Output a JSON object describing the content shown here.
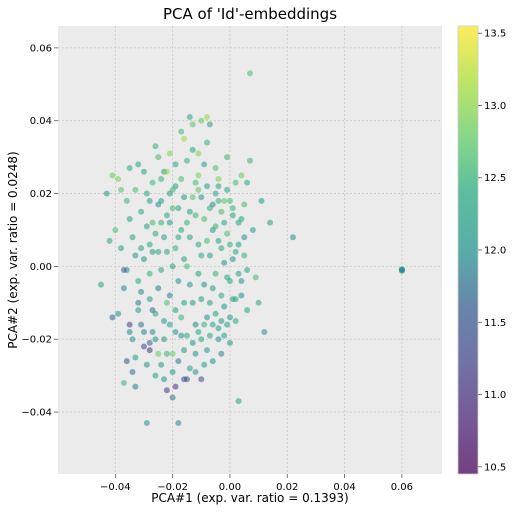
{
  "chart_data": {
    "type": "scatter",
    "title": "PCA of 'Id'-embeddings",
    "xlabel": "PCA#1 (exp. var. ratio = 0.1393)",
    "ylabel": "PCA#2 (exp. var. ratio = 0.0248)",
    "xlim": [
      -0.06,
      0.074
    ],
    "ylim": [
      -0.057,
      0.066
    ],
    "xticks": [
      -0.04,
      -0.02,
      0.0,
      0.02,
      0.04,
      0.06
    ],
    "xtick_labels": [
      "−0.04",
      "−0.02",
      "0.00",
      "0.02",
      "0.04",
      "0.06"
    ],
    "yticks": [
      -0.04,
      -0.02,
      0.0,
      0.02,
      0.04,
      0.06
    ],
    "ytick_labels": [
      "−0.04",
      "−0.02",
      "0.00",
      "0.02",
      "0.04",
      "0.06"
    ],
    "grid": true,
    "colorbar": {
      "colormap": "viridis",
      "range": [
        10.45,
        13.55
      ],
      "ticks": [
        10.5,
        11.0,
        11.5,
        12.0,
        12.5,
        13.0,
        13.5
      ],
      "tick_labels": [
        "10.5",
        "11.0",
        "11.5",
        "12.0",
        "12.5",
        "13.0",
        "13.5"
      ]
    },
    "colors": {
      "plot_background": "#ebebeb",
      "grid": "#c8c8c8",
      "point_alpha": 0.55
    },
    "points": [
      [
        -0.045,
        -0.005,
        12.3
      ],
      [
        -0.043,
        0.02,
        12.1
      ],
      [
        -0.042,
        0.007,
        12.4
      ],
      [
        -0.041,
        -0.014,
        11.6
      ],
      [
        -0.04,
        0.01,
        12.6
      ],
      [
        -0.039,
        0.024,
        12.9
      ],
      [
        -0.038,
        0.021,
        12.7
      ],
      [
        -0.037,
        -0.032,
        12.5
      ],
      [
        -0.036,
        -0.026,
        11.4
      ],
      [
        -0.035,
        0.013,
        12.2
      ],
      [
        -0.034,
        -0.02,
        12.0
      ],
      [
        -0.033,
        -0.033,
        11.8
      ],
      [
        -0.032,
        0.028,
        12.3
      ],
      [
        -0.031,
        -0.007,
        11.9
      ],
      [
        -0.03,
        0.002,
        12.1
      ],
      [
        -0.03,
        -0.022,
        11.2
      ],
      [
        -0.029,
        -0.043,
        12.0
      ],
      [
        -0.028,
        0.006,
        12.4
      ],
      [
        -0.027,
        -0.012,
        11.7
      ],
      [
        -0.026,
        0.033,
        12.5
      ],
      [
        -0.025,
        -0.024,
        12.8
      ],
      [
        -0.024,
        0.018,
        12.2
      ],
      [
        -0.023,
        -0.031,
        12.0
      ],
      [
        -0.022,
        -0.034,
        11.1
      ],
      [
        -0.021,
        0.031,
        12.9
      ],
      [
        -0.02,
        -0.036,
        11.8
      ],
      [
        -0.019,
        0.022,
        12.3
      ],
      [
        -0.018,
        -0.043,
        11.9
      ],
      [
        -0.017,
        0.037,
        12.6
      ],
      [
        -0.016,
        0.035,
        13.1
      ],
      [
        -0.015,
        -0.031,
        11.5
      ],
      [
        -0.014,
        0.041,
        12.4
      ],
      [
        -0.013,
        0.039,
        12.7
      ],
      [
        -0.012,
        -0.029,
        12.1
      ],
      [
        -0.011,
        0.025,
        12.9
      ],
      [
        -0.01,
        0.04,
        12.8
      ],
      [
        -0.009,
        -0.027,
        12.2
      ],
      [
        -0.008,
        0.034,
        12.5
      ],
      [
        -0.007,
        0.039,
        12.3
      ],
      [
        -0.006,
        -0.026,
        12.0
      ],
      [
        -0.005,
        0.027,
        12.6
      ],
      [
        -0.004,
        0.022,
        12.4
      ],
      [
        -0.003,
        -0.024,
        11.9
      ],
      [
        -0.002,
        0.018,
        12.7
      ],
      [
        -0.001,
        0.03,
        12.5
      ],
      [
        0.0,
        -0.021,
        12.1
      ],
      [
        0.001,
        0.014,
        12.3
      ],
      [
        0.002,
        0.023,
        12.6
      ],
      [
        0.003,
        -0.037,
        12.2
      ],
      [
        0.004,
        0.025,
        12.8
      ],
      [
        0.005,
        0.008,
        12.0
      ],
      [
        0.006,
        0.023,
        12.4
      ],
      [
        0.007,
        0.029,
        12.5
      ],
      [
        0.008,
        0.01,
        12.2
      ],
      [
        0.009,
        -0.003,
        12.6
      ],
      [
        0.01,
        -0.01,
        12.4
      ],
      [
        0.011,
        0.018,
        12.1
      ],
      [
        0.012,
        -0.018,
        12.0
      ],
      [
        0.014,
        0.012,
        12.3
      ],
      [
        0.022,
        0.008,
        12.0
      ],
      [
        0.007,
        0.053,
        12.6
      ],
      [
        -0.028,
        0.018,
        12.2
      ],
      [
        -0.027,
        -0.018,
        12.0
      ],
      [
        -0.026,
        0.009,
        12.4
      ],
      [
        -0.025,
        -0.006,
        11.8
      ],
      [
        -0.024,
        0.012,
        12.5
      ],
      [
        -0.023,
        -0.015,
        12.1
      ],
      [
        -0.022,
        0.004,
        12.3
      ],
      [
        -0.021,
        -0.008,
        11.9
      ],
      [
        -0.02,
        0.016,
        12.6
      ],
      [
        -0.019,
        -0.012,
        12.2
      ],
      [
        -0.018,
        0.008,
        12.4
      ],
      [
        -0.017,
        -0.019,
        12.0
      ],
      [
        -0.016,
        0.002,
        12.3
      ],
      [
        -0.015,
        0.012,
        12.5
      ],
      [
        -0.014,
        -0.005,
        12.1
      ],
      [
        -0.013,
        0.019,
        12.7
      ],
      [
        -0.012,
        -0.016,
        11.9
      ],
      [
        -0.011,
        0.006,
        12.4
      ],
      [
        -0.01,
        -0.009,
        12.2
      ],
      [
        -0.009,
        0.013,
        12.6
      ],
      [
        -0.008,
        -0.014,
        12.0
      ],
      [
        -0.007,
        0.003,
        12.3
      ],
      [
        -0.006,
        -0.006,
        12.1
      ],
      [
        -0.005,
        0.011,
        12.5
      ],
      [
        -0.004,
        -0.017,
        12.2
      ],
      [
        -0.003,
        0.005,
        12.4
      ],
      [
        -0.002,
        -0.011,
        12.0
      ],
      [
        -0.001,
        0.009,
        12.6
      ],
      [
        0.0,
        -0.004,
        12.3
      ],
      [
        0.001,
        0.002,
        12.1
      ],
      [
        0.002,
        -0.015,
        12.4
      ],
      [
        0.003,
        0.006,
        12.2
      ],
      [
        0.004,
        -0.008,
        12.0
      ],
      [
        0.005,
        0.003,
        12.5
      ],
      [
        0.006,
        -0.012,
        12.3
      ],
      [
        -0.033,
        0.003,
        12.1
      ],
      [
        -0.032,
        -0.01,
        11.8
      ],
      [
        -0.031,
        0.015,
        12.4
      ],
      [
        -0.03,
        0.026,
        12.3
      ],
      [
        -0.029,
        -0.027,
        12.0
      ],
      [
        -0.028,
        -0.021,
        11.6
      ],
      [
        -0.027,
        0.023,
        12.5
      ],
      [
        -0.026,
        -0.03,
        12.2
      ],
      [
        -0.025,
        0.03,
        12.6
      ],
      [
        -0.024,
        -0.027,
        12.1
      ],
      [
        -0.023,
        0.026,
        12.3
      ],
      [
        -0.022,
        -0.024,
        12.5
      ],
      [
        -0.021,
        0.02,
        12.2
      ],
      [
        -0.02,
        -0.029,
        12.0
      ],
      [
        -0.019,
        0.028,
        12.4
      ],
      [
        -0.018,
        -0.026,
        11.8
      ],
      [
        -0.017,
        0.024,
        12.6
      ],
      [
        -0.016,
        -0.023,
        12.1
      ],
      [
        -0.015,
        0.029,
        12.5
      ],
      [
        -0.014,
        -0.028,
        12.2
      ],
      [
        -0.013,
        0.032,
        12.3
      ],
      [
        -0.012,
        -0.024,
        12.0
      ],
      [
        -0.011,
        0.021,
        12.7
      ],
      [
        -0.01,
        -0.02,
        12.4
      ],
      [
        -0.009,
        0.028,
        12.2
      ],
      [
        -0.008,
        -0.023,
        12.1
      ],
      [
        -0.007,
        0.016,
        12.5
      ],
      [
        -0.006,
        -0.016,
        12.3
      ],
      [
        -0.005,
        0.02,
        12.4
      ],
      [
        -0.004,
        -0.02,
        12.0
      ],
      [
        -0.003,
        0.015,
        12.6
      ],
      [
        -0.002,
        -0.019,
        12.2
      ],
      [
        -0.001,
        0.021,
        12.3
      ],
      [
        0.0,
        -0.014,
        12.1
      ],
      [
        0.001,
        0.016,
        12.5
      ],
      [
        0.002,
        -0.009,
        12.4
      ],
      [
        0.003,
        0.012,
        12.2
      ],
      [
        0.004,
        -0.004,
        12.0
      ],
      [
        0.005,
        0.017,
        12.6
      ],
      [
        0.006,
        -0.001,
        12.3
      ],
      [
        -0.036,
        -0.001,
        12.0
      ],
      [
        -0.035,
        -0.018,
        11.9
      ],
      [
        -0.034,
        0.008,
        12.3
      ],
      [
        -0.033,
        -0.025,
        12.1
      ],
      [
        -0.032,
        -0.004,
        12.4
      ],
      [
        -0.031,
        -0.016,
        11.7
      ],
      [
        -0.029,
        0.011,
        12.2
      ],
      [
        -0.028,
        -0.002,
        12.5
      ],
      [
        -0.027,
        0.004,
        12.1
      ],
      [
        -0.026,
        -0.013,
        12.3
      ],
      [
        -0.025,
        0.017,
        12.0
      ],
      [
        -0.024,
        -0.001,
        12.4
      ],
      [
        -0.023,
        0.008,
        12.2
      ],
      [
        -0.022,
        -0.01,
        12.6
      ],
      [
        -0.021,
        0.012,
        12.1
      ],
      [
        -0.02,
        0.0,
        12.3
      ],
      [
        -0.019,
        0.005,
        12.5
      ],
      [
        -0.018,
        -0.004,
        12.0
      ],
      [
        -0.017,
        0.01,
        12.4
      ],
      [
        -0.016,
        -0.01,
        12.2
      ],
      [
        -0.015,
        0.0,
        12.6
      ],
      [
        -0.014,
        0.008,
        12.3
      ],
      [
        -0.013,
        -0.01,
        12.1
      ],
      [
        -0.012,
        0.014,
        12.5
      ],
      [
        -0.011,
        -0.002,
        12.2
      ],
      [
        -0.01,
        0.003,
        12.4
      ],
      [
        -0.009,
        -0.005,
        12.0
      ],
      [
        -0.008,
        0.007,
        12.6
      ],
      [
        -0.007,
        -0.01,
        12.3
      ],
      [
        -0.006,
        0.01,
        12.1
      ],
      [
        -0.005,
        -0.002,
        12.5
      ],
      [
        -0.004,
        0.007,
        12.2
      ],
      [
        -0.003,
        -0.008,
        12.4
      ],
      [
        -0.002,
        0.001,
        12.0
      ],
      [
        -0.001,
        -0.003,
        12.3
      ],
      [
        0.0,
        0.006,
        12.5
      ],
      [
        0.001,
        -0.009,
        12.2
      ],
      [
        0.002,
        0.004,
        12.4
      ],
      [
        0.003,
        -0.002,
        12.1
      ],
      [
        0.004,
        0.013,
        12.3
      ],
      [
        0.06,
        -0.001,
        11.9
      ],
      [
        0.06,
        -0.0008,
        12.0
      ],
      [
        0.06,
        -0.0012,
        11.95
      ],
      [
        0.0601,
        -0.001,
        12.05
      ],
      [
        -0.038,
        0.005,
        12.2
      ],
      [
        -0.037,
        -0.006,
        11.9
      ],
      [
        -0.036,
        0.018,
        12.5
      ],
      [
        -0.039,
        -0.013,
        12.0
      ],
      [
        -0.035,
        0.027,
        12.4
      ],
      [
        -0.034,
        -0.029,
        11.7
      ],
      [
        -0.033,
        0.021,
        12.6
      ],
      [
        -0.032,
        -0.012,
        12.1
      ],
      [
        -0.031,
        0.005,
        12.3
      ],
      [
        -0.03,
        -0.018,
        11.9
      ],
      [
        -0.029,
        0.02,
        12.4
      ],
      [
        -0.028,
        -0.009,
        12.2
      ],
      [
        -0.027,
        0.012,
        12.6
      ],
      [
        -0.026,
        -0.02,
        12.0
      ],
      [
        -0.025,
        0.004,
        12.3
      ],
      [
        -0.024,
        0.024,
        12.5
      ],
      [
        -0.023,
        -0.02,
        12.1
      ],
      [
        -0.022,
        0.014,
        12.4
      ],
      [
        -0.021,
        -0.016,
        12.2
      ],
      [
        -0.02,
        0.021,
        12.6
      ],
      [
        -0.019,
        -0.018,
        12.0
      ],
      [
        -0.018,
        0.016,
        12.3
      ],
      [
        -0.017,
        -0.014,
        12.5
      ],
      [
        -0.016,
        0.019,
        12.1
      ],
      [
        -0.015,
        -0.019,
        12.4
      ],
      [
        -0.014,
        0.015,
        12.2
      ],
      [
        -0.013,
        -0.021,
        12.0
      ],
      [
        -0.012,
        0.023,
        12.6
      ],
      [
        -0.011,
        -0.018,
        12.3
      ],
      [
        -0.01,
        0.019,
        12.1
      ],
      [
        -0.009,
        -0.016,
        12.5
      ],
      [
        -0.008,
        0.022,
        12.2
      ],
      [
        -0.007,
        -0.019,
        12.4
      ],
      [
        -0.006,
        0.017,
        12.0
      ],
      [
        -0.005,
        -0.013,
        12.3
      ],
      [
        -0.004,
        0.018,
        12.5
      ],
      [
        -0.003,
        -0.015,
        12.1
      ],
      [
        -0.002,
        0.012,
        12.4
      ],
      [
        -0.001,
        -0.016,
        12.2
      ],
      [
        0.0,
        0.018,
        12.6
      ],
      [
        -0.028,
        -0.023,
        11.0
      ],
      [
        -0.019,
        -0.033,
        11.0
      ],
      [
        -0.035,
        -0.016,
        11.2
      ],
      [
        -0.016,
        -0.031,
        11.3
      ],
      [
        -0.01,
        -0.031,
        11.4
      ],
      [
        -0.037,
        -0.001,
        11.6
      ],
      [
        -0.011,
        0.031,
        12.9
      ],
      [
        -0.022,
        0.026,
        13.0
      ],
      [
        -0.041,
        0.025,
        12.8
      ],
      [
        -0.008,
        0.041,
        13.1
      ],
      [
        -0.02,
        -0.024,
        12.8
      ],
      [
        -0.004,
        0.024,
        12.9
      ]
    ]
  }
}
